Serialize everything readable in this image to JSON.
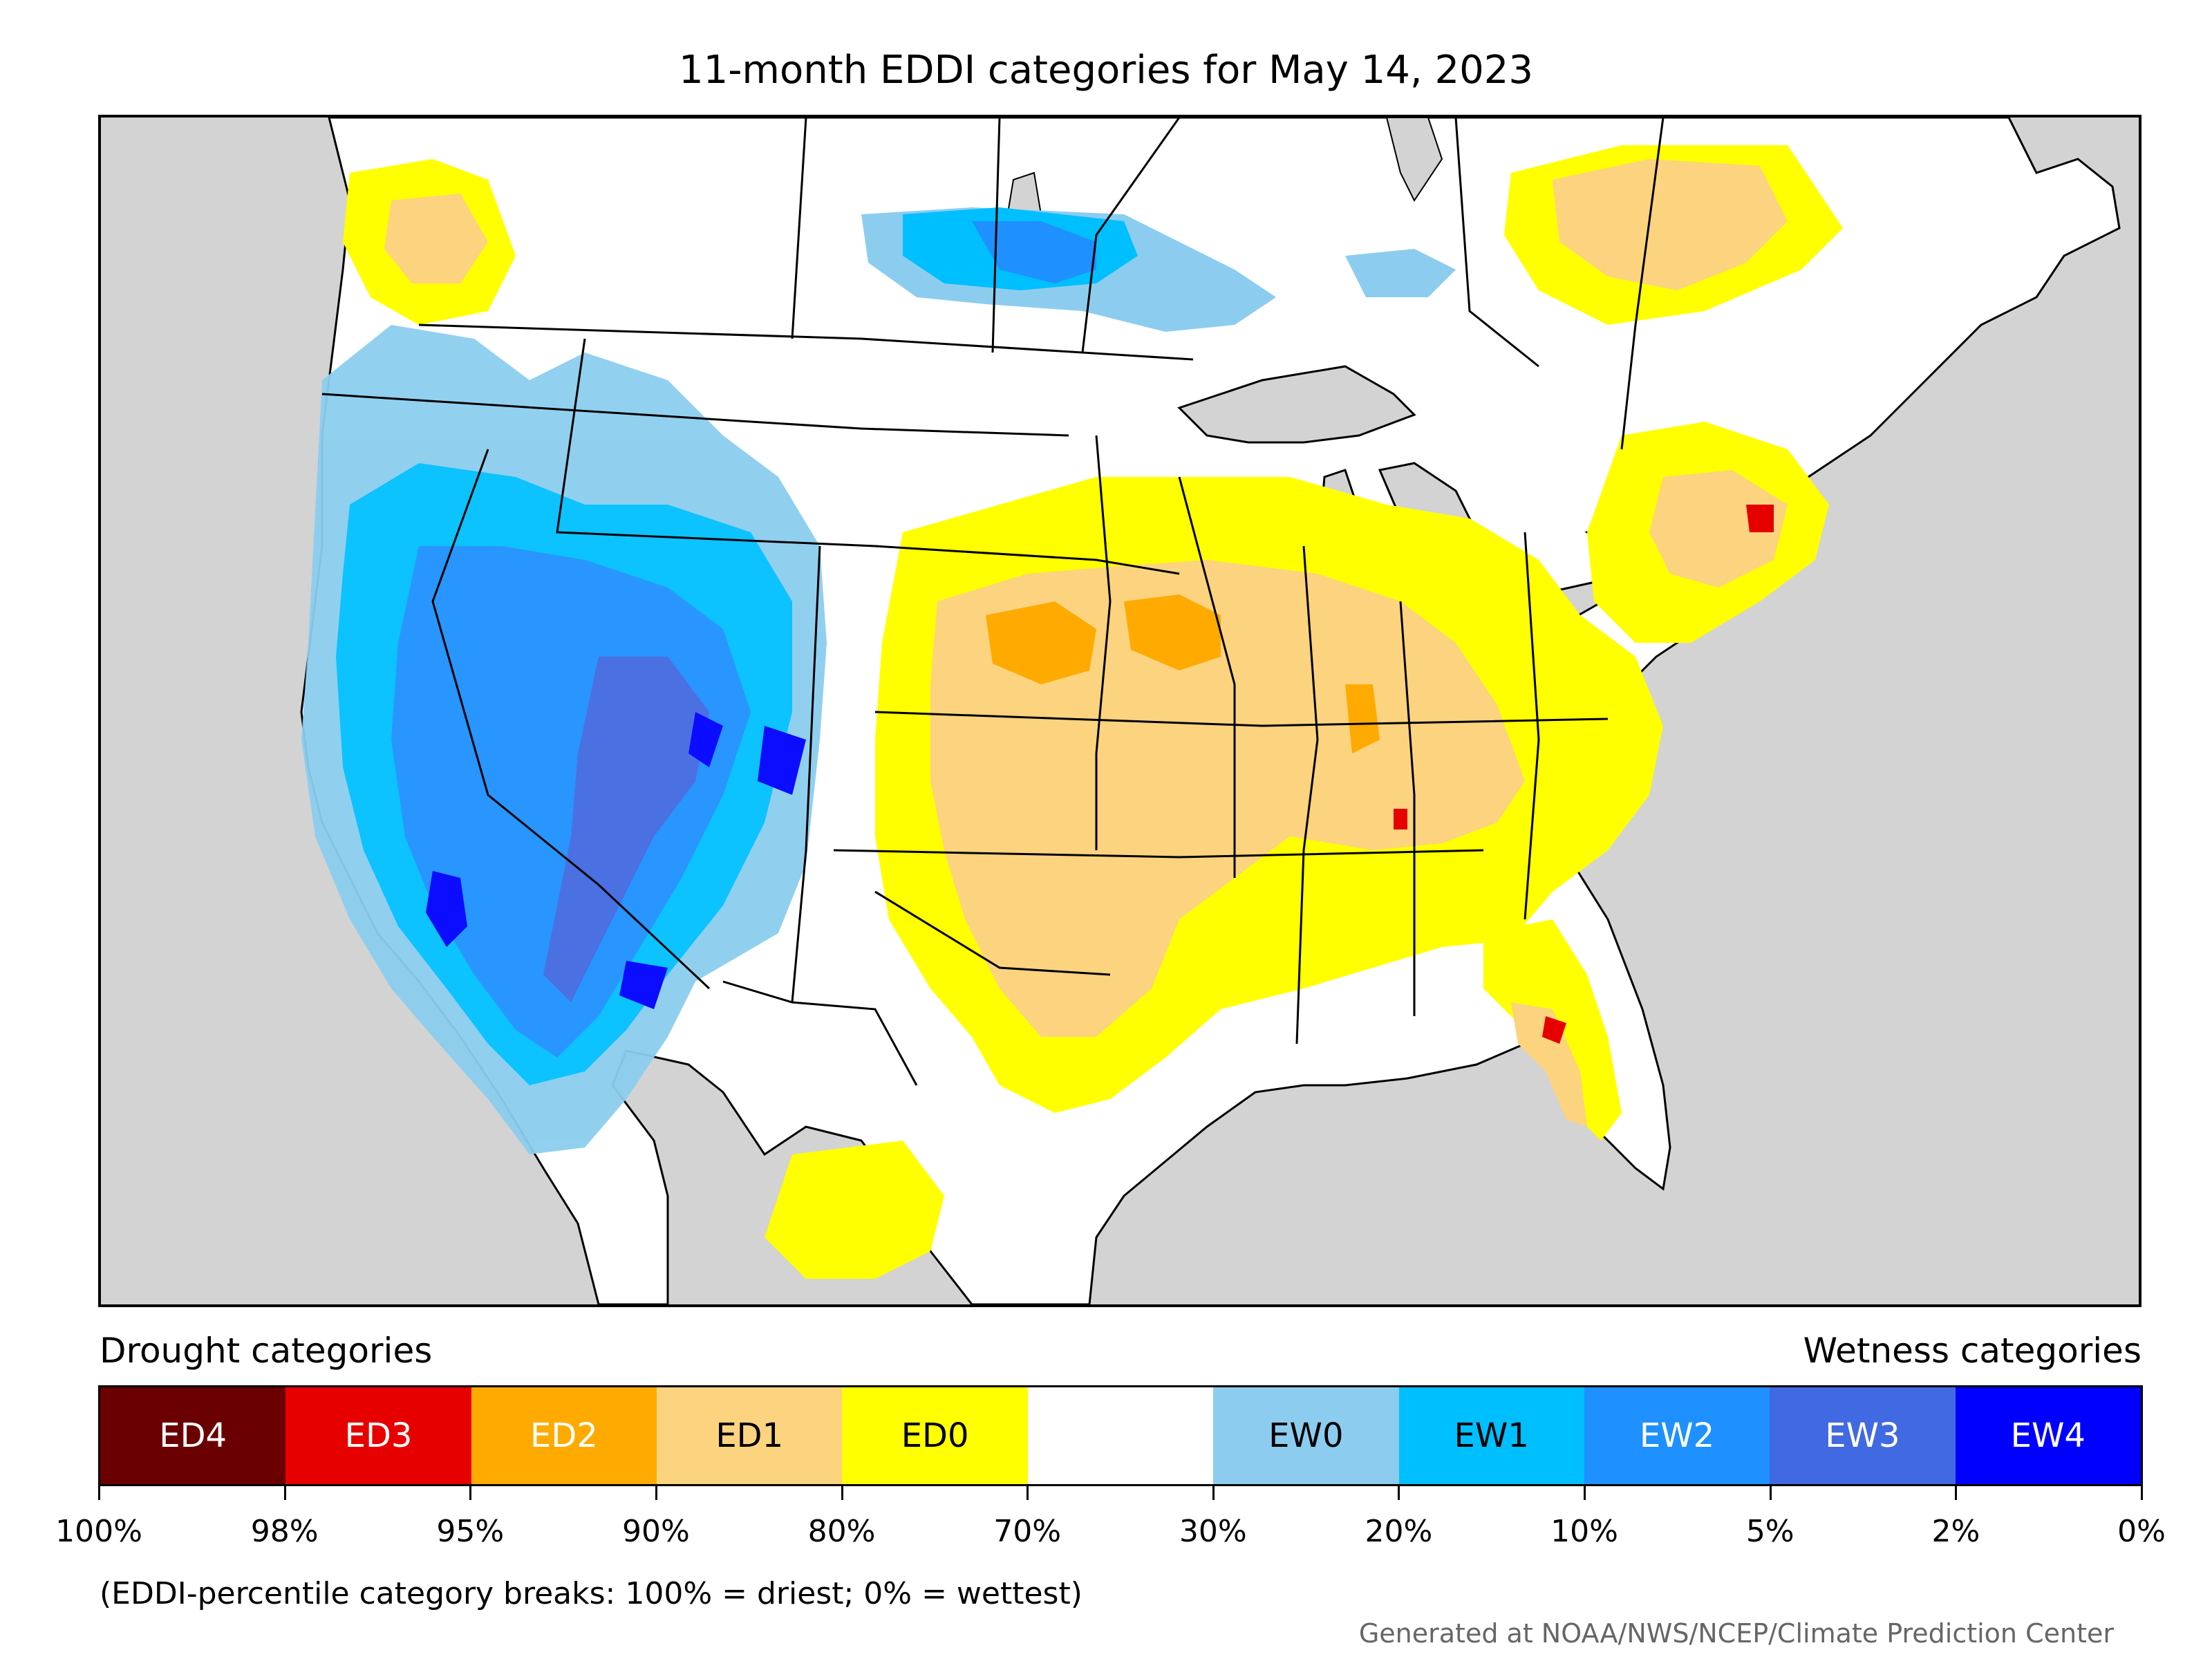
{
  "title": "11-month EDDI categories for May 14, 2023",
  "legend": {
    "drought_heading": "Drought categories",
    "wetness_heading": "Wetness categories",
    "categories": [
      {
        "label": "ED4",
        "color": "#6b0000",
        "text_color": "#ffffff"
      },
      {
        "label": "ED3",
        "color": "#e60000",
        "text_color": "#ffffff"
      },
      {
        "label": "ED2",
        "color": "#ffaa00",
        "text_color": "#ffffff"
      },
      {
        "label": "ED1",
        "color": "#fcd37f",
        "text_color": "#000000"
      },
      {
        "label": "ED0",
        "color": "#ffff00",
        "text_color": "#000000"
      },
      {
        "label": "",
        "color": "#ffffff",
        "text_color": "#000000"
      },
      {
        "label": "EW0",
        "color": "#8ccdef",
        "text_color": "#000000"
      },
      {
        "label": "EW1",
        "color": "#00bfff",
        "text_color": "#000000"
      },
      {
        "label": "EW2",
        "color": "#1e90ff",
        "text_color": "#ffffff"
      },
      {
        "label": "EW3",
        "color": "#4169e1",
        "text_color": "#ffffff"
      },
      {
        "label": "EW4",
        "color": "#0000ff",
        "text_color": "#ffffff"
      }
    ],
    "breaks": [
      "100%",
      "98%",
      "95%",
      "90%",
      "80%",
      "70%",
      "30%",
      "20%",
      "10%",
      "5%",
      "2%",
      "0%"
    ]
  },
  "note": "(EDDI-percentile category breaks: 100% = driest; 0% = wettest)",
  "credit": "Generated at NOAA/NWS/NCEP/Climate Prediction Center",
  "colors": {
    "water": "#d3d3d3",
    "land": "#ffffff",
    "border": "#000000"
  }
}
